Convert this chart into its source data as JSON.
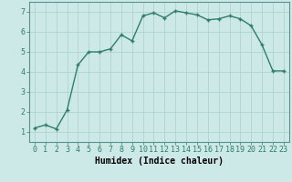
{
  "x": [
    0,
    1,
    2,
    3,
    4,
    5,
    6,
    7,
    8,
    9,
    10,
    11,
    12,
    13,
    14,
    15,
    16,
    17,
    18,
    19,
    20,
    21,
    22,
    23
  ],
  "y": [
    1.2,
    1.35,
    1.15,
    2.1,
    4.35,
    5.0,
    5.0,
    5.15,
    5.85,
    5.55,
    6.8,
    6.95,
    6.7,
    7.05,
    6.95,
    6.85,
    6.6,
    6.65,
    6.8,
    6.65,
    6.3,
    5.35,
    4.05,
    4.05
  ],
  "line_color": "#2e7d6e",
  "marker": "+",
  "marker_color": "#2e7d6e",
  "bg_color": "#cce9e7",
  "grid_color": "#aed4d1",
  "xlabel": "Humidex (Indice chaleur)",
  "xlim": [
    -0.5,
    23.5
  ],
  "ylim": [
    0.5,
    7.5
  ],
  "xticks": [
    0,
    1,
    2,
    3,
    4,
    5,
    6,
    7,
    8,
    9,
    10,
    11,
    12,
    13,
    14,
    15,
    16,
    17,
    18,
    19,
    20,
    21,
    22,
    23
  ],
  "yticks": [
    1,
    2,
    3,
    4,
    5,
    6,
    7
  ],
  "xlabel_fontsize": 7,
  "tick_fontsize": 6,
  "line_width": 1.0,
  "marker_size": 3.5
}
